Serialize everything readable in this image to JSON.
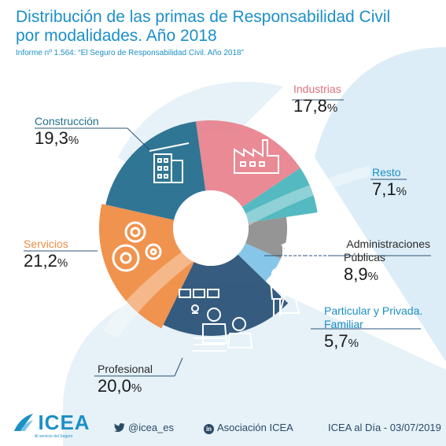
{
  "header": {
    "title": "Distribución de las primas de Responsabilidad Civil por modalidades. Año 2018",
    "subtitle": "Informe nº 1.564: “El Seguro de Responsabilidad Civil. Año 2018”"
  },
  "chart_data": {
    "type": "pie",
    "style": "donut",
    "unit": "%",
    "slices": [
      {
        "name": "Industrias",
        "value": 17.8,
        "display": "17,8",
        "color": "#e8848f",
        "icon": "factory-icon"
      },
      {
        "name": "Resto",
        "value": 7.1,
        "display": "7,1",
        "color": "#4bb5bd",
        "icon": "none"
      },
      {
        "name": "Administraciones Públicas",
        "value": 8.9,
        "display": "8,9",
        "color": "#8f8f8f",
        "icon": "town-hall-icon"
      },
      {
        "name": "Particular y Privada. Familiar",
        "value": 5.7,
        "display": "5,7",
        "color": "#7ec3e8",
        "icon": "family-icon"
      },
      {
        "name": "Profesional",
        "value": 20.0,
        "display": "20,0",
        "color": "#2b5378",
        "icon": "meeting-icon"
      },
      {
        "name": "Servicios",
        "value": 21.2,
        "display": "21,2",
        "color": "#ef8d45",
        "icon": "gears-icon"
      },
      {
        "name": "Construcción",
        "value": 19.3,
        "display": "19,3",
        "color": "#256f8e",
        "icon": "building-icon"
      }
    ],
    "labels": {
      "industrias": {
        "name": "Industrias",
        "value": "17,8",
        "color": "#e0707f"
      },
      "resto": {
        "name": "Resto",
        "value": "7,1",
        "color": "#1c8fc7"
      },
      "admin_1": "Administraciones",
      "admin_2": "Públicas",
      "admin_value": "8,9",
      "familiar_1": "Particular y Privada.",
      "familiar_2": "Familiar",
      "familiar_value": "5,7",
      "profesional": {
        "name": "Profesional",
        "value": "20,0"
      },
      "servicios": {
        "name": "Servicios",
        "value": "21,2",
        "color": "#ef8d45"
      },
      "construccion": {
        "name": "Construcción",
        "value": "19,3",
        "color": "#256f8e"
      },
      "pct": "%"
    }
  },
  "footer": {
    "brand": "ICEA",
    "brand_tagline": "Al servicio del Seguro",
    "twitter": "@icea_es",
    "linkedin": "Asociación ICEA",
    "edition": "ICEA al Día - 03/07/2019"
  },
  "colors": {
    "accent": "#1c8fc7",
    "background_shape": "#dcedf7",
    "text_dark": "#1a1a1a"
  }
}
